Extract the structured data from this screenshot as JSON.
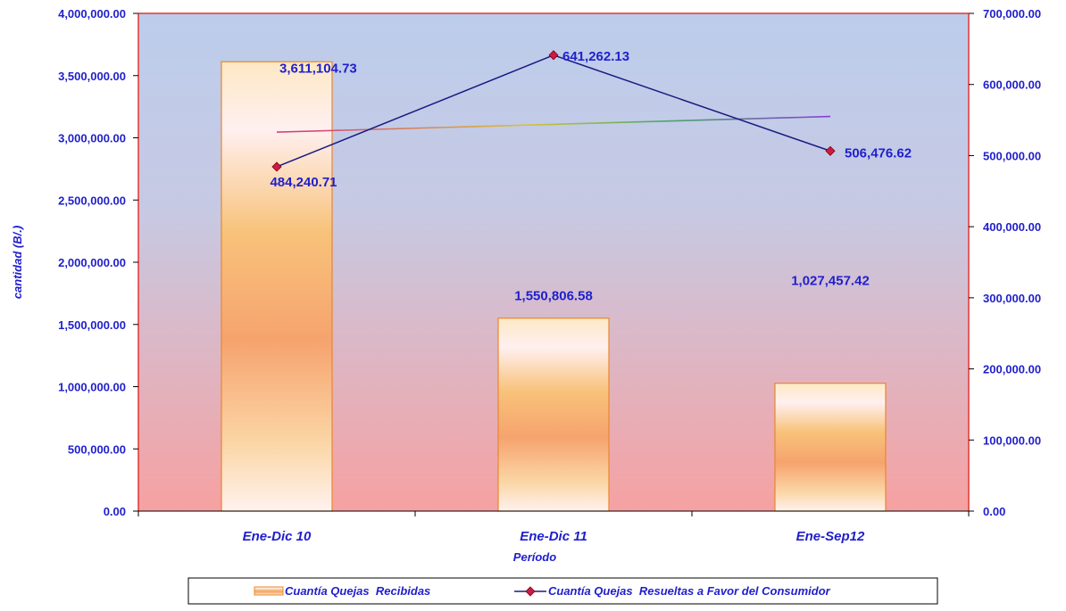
{
  "chart_data": {
    "type": "bar",
    "categories": [
      "Ene-Dic 10",
      "Ene-Dic 11",
      "Ene-Sep12"
    ],
    "series": [
      {
        "name": "Cuantía Quejas  Recibidas",
        "type": "bar",
        "axis": "left",
        "values": [
          3611104.73,
          1550806.58,
          1027457.42
        ],
        "value_labels": [
          "3,611,104.73",
          "1,550,806.58",
          "1,027,457.42"
        ]
      },
      {
        "name": "Cuantía Quejas  Resueltas a Favor del Consumidor",
        "type": "line",
        "axis": "right",
        "values": [
          484240.71,
          641262.13,
          506476.62
        ],
        "value_labels": [
          "484,240.71",
          "641,262.13",
          "506,476.62"
        ]
      }
    ],
    "trendline": {
      "of_series": 1,
      "axis": "right",
      "start": 533000,
      "end": 555000
    },
    "xlabel": "Período",
    "ylabel": "cantidad (B/.)",
    "ylim_left": [
      0,
      4000000
    ],
    "ylim_right": [
      0,
      700000
    ],
    "yticks_left": [
      "0.00",
      "500,000.00",
      "1,000,000.00",
      "1,500,000.00",
      "2,000,000.00",
      "2,500,000.00",
      "3,000,000.00",
      "3,500,000.00",
      "4,000,000.00"
    ],
    "yticks_right": [
      "0.00",
      "100,000.00",
      "200,000.00",
      "300,000.00",
      "400,000.00",
      "500,000.00",
      "600,000.00",
      "700,000.00"
    ],
    "legend_position": "bottom",
    "grid": false,
    "colors": {
      "label_text": "#1f1fcc",
      "bar_edge": "#e8872e",
      "line": "#1a1a80",
      "marker": "#cc1a4d",
      "plot_top": "#bccdec",
      "plot_bottom": "#f6a1a1"
    }
  }
}
